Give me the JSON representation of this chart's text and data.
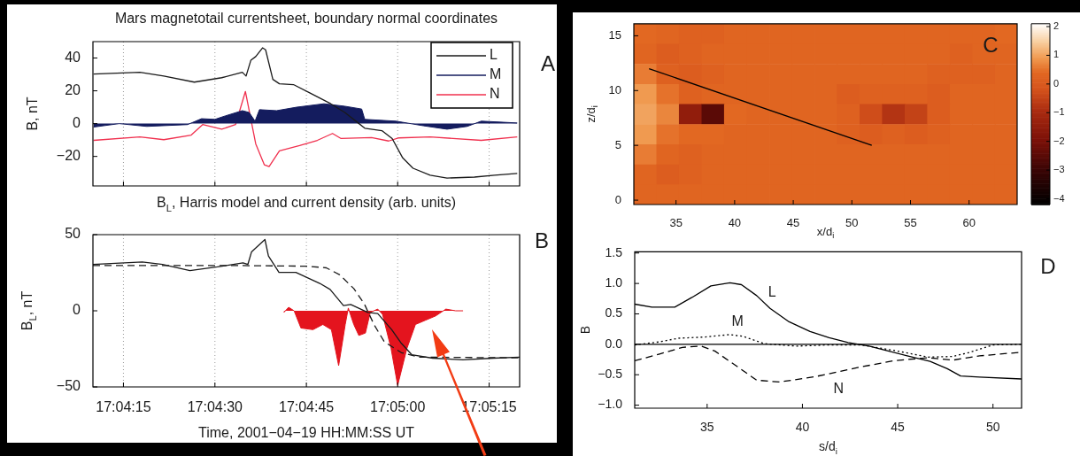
{
  "chart_data": [
    {
      "type": "line",
      "title": "Mars magnetotail currentsheet, boundary normal coordinates",
      "ylabel": "B, nT",
      "xlim": [
        17.06944,
        17.08889
      ],
      "xticks": [
        {
          "value": 17.07083,
          "label": null
        },
        {
          "value": 17.075,
          "label": null
        },
        {
          "value": 17.07917,
          "label": null
        },
        {
          "value": 17.08333,
          "label": null
        },
        {
          "value": 17.0875,
          "label": null
        }
      ],
      "ylim": [
        -38,
        50
      ],
      "yticks": [
        -20,
        0,
        20,
        40
      ],
      "tick_labels": "y",
      "grid": "x",
      "legend": "top right",
      "annotations": [
        "A"
      ],
      "series": [
        {
          "name": "L",
          "type": "line",
          "color": "#1a1a1a",
          "x": [
            17.06947,
            17.07158,
            17.07267,
            17.07406,
            17.07531,
            17.07625,
            17.07642,
            17.07664,
            17.07686,
            17.07717,
            17.07731,
            17.07764,
            17.07794,
            17.07858,
            17.07936,
            17.08028,
            17.08092,
            17.08153,
            17.08183,
            17.08261,
            17.08308,
            17.08356,
            17.08403,
            17.08481,
            17.08558,
            17.08683,
            17.08775,
            17.08878
          ],
          "values": [
            30.2,
            31.3,
            29,
            25.3,
            28,
            31.3,
            29,
            38.7,
            40.9,
            46.2,
            45,
            27,
            24.3,
            23.8,
            18.5,
            12.1,
            6.8,
            0.4,
            -2.8,
            -4.3,
            -9.1,
            -20.9,
            -27.2,
            -31.5,
            -33.2,
            -32.6,
            -31.5,
            -30.4
          ]
        },
        {
          "name": "M",
          "type": "area",
          "color": "#141c5e",
          "x": [
            17.06947,
            17.07064,
            17.07189,
            17.07375,
            17.07439,
            17.075,
            17.07547,
            17.07625,
            17.07656,
            17.07683,
            17.07703,
            17.07781,
            17.07872,
            17.07997,
            17.08092,
            17.08169,
            17.08183,
            17.08325,
            17.0845,
            17.08558,
            17.0865,
            17.08714,
            17.08878
          ],
          "values": [
            -2.1,
            0,
            -1.7,
            -0.6,
            3,
            2.6,
            4.7,
            7.9,
            6.8,
            1.5,
            8.5,
            7.9,
            10,
            12.1,
            10.6,
            8.9,
            2.6,
            1.5,
            -1.3,
            -3.4,
            -1.7,
            1.5,
            0.4
          ]
        },
        {
          "name": "N",
          "type": "line",
          "color": "#f0304e",
          "x": [
            17.06947,
            17.07158,
            17.07267,
            17.07392,
            17.07444,
            17.07531,
            17.07594,
            17.07639,
            17.07686,
            17.07725,
            17.07747,
            17.07794,
            17.07886,
            17.07967,
            17.08036,
            17.08075,
            17.08214,
            17.08292,
            17.08339,
            17.08481,
            17.08714,
            17.08878
          ],
          "values": [
            -10.2,
            -8.1,
            -9.8,
            -7,
            -0.6,
            -3.4,
            -0.6,
            19.6,
            -12.3,
            -25.1,
            -26.2,
            -16.6,
            -13.4,
            -10.2,
            -6,
            -9.1,
            -8.5,
            -10.6,
            -8.7,
            -8.1,
            -10.2,
            -8.1
          ]
        }
      ]
    },
    {
      "type": "line",
      "title": "B$_{L}$, Harris model and current density (arb. units)",
      "xlabel": "Time, 2001−04−19 HH:MM:SS UT",
      "ylabel": "B$_{L}$, nT",
      "xlim": [
        17.06944,
        17.08889
      ],
      "xticks": [
        {
          "value": 17.07083,
          "label": "17:04:15"
        },
        {
          "value": 17.075,
          "label": "17:04:30"
        },
        {
          "value": 17.07917,
          "label": "17:04:45"
        },
        {
          "value": 17.08333,
          "label": "17:05:00"
        },
        {
          "value": 17.0875,
          "label": "17:05:15"
        }
      ],
      "ylim": [
        -50,
        50
      ],
      "yticks": [
        -50,
        0,
        50
      ],
      "grid": "x",
      "annotations": [
        "B"
      ],
      "series": [
        {
          "type": "line",
          "color": "#1a1a1a",
          "line_style": "solid",
          "x": [
            17.06944,
            17.07169,
            17.07261,
            17.07386,
            17.07511,
            17.07628,
            17.0765,
            17.07667,
            17.07706,
            17.07728,
            17.07744,
            17.07792,
            17.07869,
            17.07978,
            17.08025,
            17.08086,
            17.08119,
            17.08197,
            17.08242,
            17.08306,
            17.0835,
            17.08397,
            17.08492,
            17.08631,
            17.08769,
            17.08889
          ],
          "values": [
            30.4,
            32,
            30.4,
            26.4,
            28.8,
            31.5,
            30.4,
            38.7,
            43.9,
            46.8,
            36,
            25.2,
            25.2,
            18,
            14,
            3.4,
            4.1,
            -1.1,
            -1.8,
            -12.4,
            -21.4,
            -28.8,
            -31.1,
            -32.2,
            -31.1,
            -30.4
          ]
        },
        {
          "type": "line",
          "color": "#1a1a1a",
          "line_style": "dashed",
          "x": [
            17.06944,
            17.07606,
            17.07917,
            17.08008,
            17.08069,
            17.08133,
            17.08181,
            17.08225,
            17.08272,
            17.0835,
            17.08428,
            17.08889
          ],
          "values": [
            29.7,
            29.7,
            29.3,
            28.2,
            23.6,
            14.6,
            4.5,
            -9,
            -20.3,
            -27.5,
            -30.4,
            -30.9
          ]
        },
        {
          "type": "area",
          "color": "#e4141e",
          "x": [
            17.07814,
            17.07836,
            17.07861,
            17.07892,
            17.07947,
            17.07992,
            17.08031,
            17.08064,
            17.08094,
            17.08108,
            17.08133,
            17.08156,
            17.08186,
            17.08208,
            17.08242,
            17.08264,
            17.08303,
            17.08333,
            17.08375,
            17.08414,
            17.08458,
            17.08506,
            17.08553,
            17.08597,
            17.08631
          ],
          "values": [
            -1.1,
            2.3,
            0,
            -11.3,
            -12.4,
            -9,
            -12.4,
            -36,
            -9,
            1.8,
            -9,
            -16.2,
            -14.6,
            -1.1,
            1.1,
            -2.3,
            -24.8,
            -49,
            -24.8,
            -9,
            -6.3,
            -3.4,
            1.1,
            0,
            0
          ]
        }
      ]
    },
    {
      "type": "heatmap",
      "xlabel": "x/d$_{i}$",
      "ylabel": "z/d$_{i}$",
      "xlim": [
        31.4,
        64.1
      ],
      "xticks": [
        35,
        40,
        45,
        50,
        55,
        60
      ],
      "ylim": [
        -0.4,
        16.1
      ],
      "yticks": [
        0,
        5,
        10,
        15
      ],
      "clim": [
        -4.2,
        2.1
      ],
      "cticks": [
        -4,
        -3,
        -2,
        -1,
        0,
        1,
        2
      ],
      "annotations": [
        "C"
      ],
      "x": [
        32.36,
        34.29,
        36.21,
        38.14,
        40.06,
        41.99,
        43.92,
        45.84,
        47.77,
        49.69,
        51.62,
        53.54,
        55.47,
        57.39,
        59.32,
        61.24,
        63.17
      ],
      "y": [
        15.18,
        13.35,
        11.52,
        9.68,
        7.85,
        6.02,
        4.18,
        2.35,
        0.52
      ],
      "cells": [
        [
          0.4,
          0.3,
          0.2,
          0.2,
          0.3,
          0.3,
          0.3,
          0.3,
          0.3,
          0.3,
          0.3,
          0.3,
          0.3,
          0.3,
          0.3,
          0.3,
          0.4
        ],
        [
          0.3,
          0.1,
          0.2,
          0.3,
          0.3,
          0.3,
          0.3,
          0.3,
          0.3,
          0.3,
          0.3,
          0.3,
          0.3,
          0.3,
          0.2,
          0.3,
          0.3
        ],
        [
          0.6,
          0.2,
          0.1,
          0.2,
          0.3,
          0.3,
          0.3,
          0.3,
          0.3,
          0.3,
          0.3,
          0.3,
          0.3,
          0.2,
          0.2,
          0.2,
          0.3
        ],
        [
          0.9,
          0.5,
          0.2,
          0.3,
          0.3,
          0.3,
          0.3,
          0.3,
          0.3,
          0.1,
          0.2,
          0.2,
          0.2,
          0.1,
          0.3,
          0.3,
          0.3
        ],
        [
          1.0,
          0.7,
          -1.5,
          -2.5,
          0.4,
          0.3,
          0.3,
          0.3,
          0.3,
          0.2,
          -0.3,
          -0.8,
          -0.5,
          0.1,
          0.3,
          0.3,
          0.3
        ],
        [
          0.9,
          0.5,
          0.4,
          0.4,
          0.3,
          0.3,
          0.3,
          0.3,
          0.3,
          0.2,
          0.1,
          0.2,
          0.1,
          0.2,
          0.3,
          0.3,
          0.3
        ],
        [
          0.6,
          0.3,
          0.2,
          0.3,
          0.3,
          0.3,
          0.3,
          0.3,
          0.3,
          0.3,
          0.3,
          0.3,
          0.3,
          0.3,
          0.3,
          0.3,
          0.3
        ],
        [
          0.3,
          0.1,
          0.2,
          0.3,
          0.3,
          0.3,
          0.3,
          0.3,
          0.3,
          0.3,
          0.3,
          0.3,
          0.3,
          0.3,
          0.3,
          0.3,
          0.3
        ],
        [
          0.3,
          0.3,
          0.3,
          0.3,
          0.3,
          0.3,
          0.3,
          0.3,
          0.3,
          0.3,
          0.3,
          0.3,
          0.3,
          0.3,
          0.3,
          0.3,
          0.3
        ]
      ],
      "series": [
        {
          "type": "line",
          "color": "#000000",
          "x": [
            32.7,
            51.7
          ],
          "values": [
            12.0,
            5.0
          ]
        }
      ]
    },
    {
      "type": "line",
      "xlabel": "s/d$_{i}$",
      "ylabel": "B",
      "xlim": [
        31.2,
        51.5
      ],
      "xticks": [
        35,
        40,
        45,
        50
      ],
      "ylim": [
        -1.05,
        1.52
      ],
      "yticks": [
        {
          "value": -1,
          "label": "−1.0"
        },
        {
          "value": -0.5,
          "label": "−0.5"
        },
        {
          "value": 0,
          "label": "0.0"
        },
        {
          "value": 0.5,
          "label": "0.5"
        },
        {
          "value": 1,
          "label": "1.0"
        },
        {
          "value": 1.5,
          "label": "1.5"
        }
      ],
      "ref_lines": [
        {
          "axis": "y",
          "value": 0
        }
      ],
      "annotations": [
        "D"
      ],
      "series": [
        {
          "name": "L",
          "type": "line",
          "color": "#000000",
          "line_style": "solid",
          "x": [
            31.2,
            32.1,
            33.3,
            34.2,
            35.2,
            36.2,
            36.8,
            37.6,
            38.3,
            39.3,
            40.4,
            41.4,
            42.4,
            43.5,
            44.5,
            45.5,
            46.7,
            47.6,
            48.3,
            49.3,
            51.5
          ],
          "values": [
            0.66,
            0.61,
            0.61,
            0.77,
            0.96,
            1.01,
            0.98,
            0.8,
            0.59,
            0.37,
            0.21,
            0.11,
            0.03,
            -0.03,
            -0.11,
            -0.19,
            -0.28,
            -0.4,
            -0.52,
            -0.54,
            -0.57
          ]
        },
        {
          "name": "M",
          "type": "line",
          "color": "#000000",
          "line_style": "dotted",
          "x": [
            31.2,
            32.5,
            33.5,
            34.9,
            36.2,
            36.9,
            38,
            39.7,
            41.4,
            43.1,
            44.8,
            46.6,
            47.9,
            48.8,
            50,
            51.5
          ],
          "values": [
            -0.01,
            0.04,
            0.1,
            0.12,
            0.16,
            0.13,
            0.01,
            -0.03,
            -0.01,
            -0.01,
            -0.1,
            -0.21,
            -0.2,
            -0.13,
            -0.01,
            0
          ]
        },
        {
          "name": "N",
          "type": "line",
          "color": "#000000",
          "line_style": "dashed",
          "x": [
            31.2,
            32.5,
            33.7,
            34.7,
            35.4,
            36.6,
            37.6,
            38.8,
            40.7,
            43.1,
            44.8,
            46.6,
            47.9,
            49.3,
            51.5
          ],
          "values": [
            -0.27,
            -0.16,
            -0.05,
            -0.03,
            -0.11,
            -0.37,
            -0.59,
            -0.62,
            -0.53,
            -0.37,
            -0.27,
            -0.22,
            -0.26,
            -0.19,
            -0.13
          ]
        }
      ]
    }
  ]
}
